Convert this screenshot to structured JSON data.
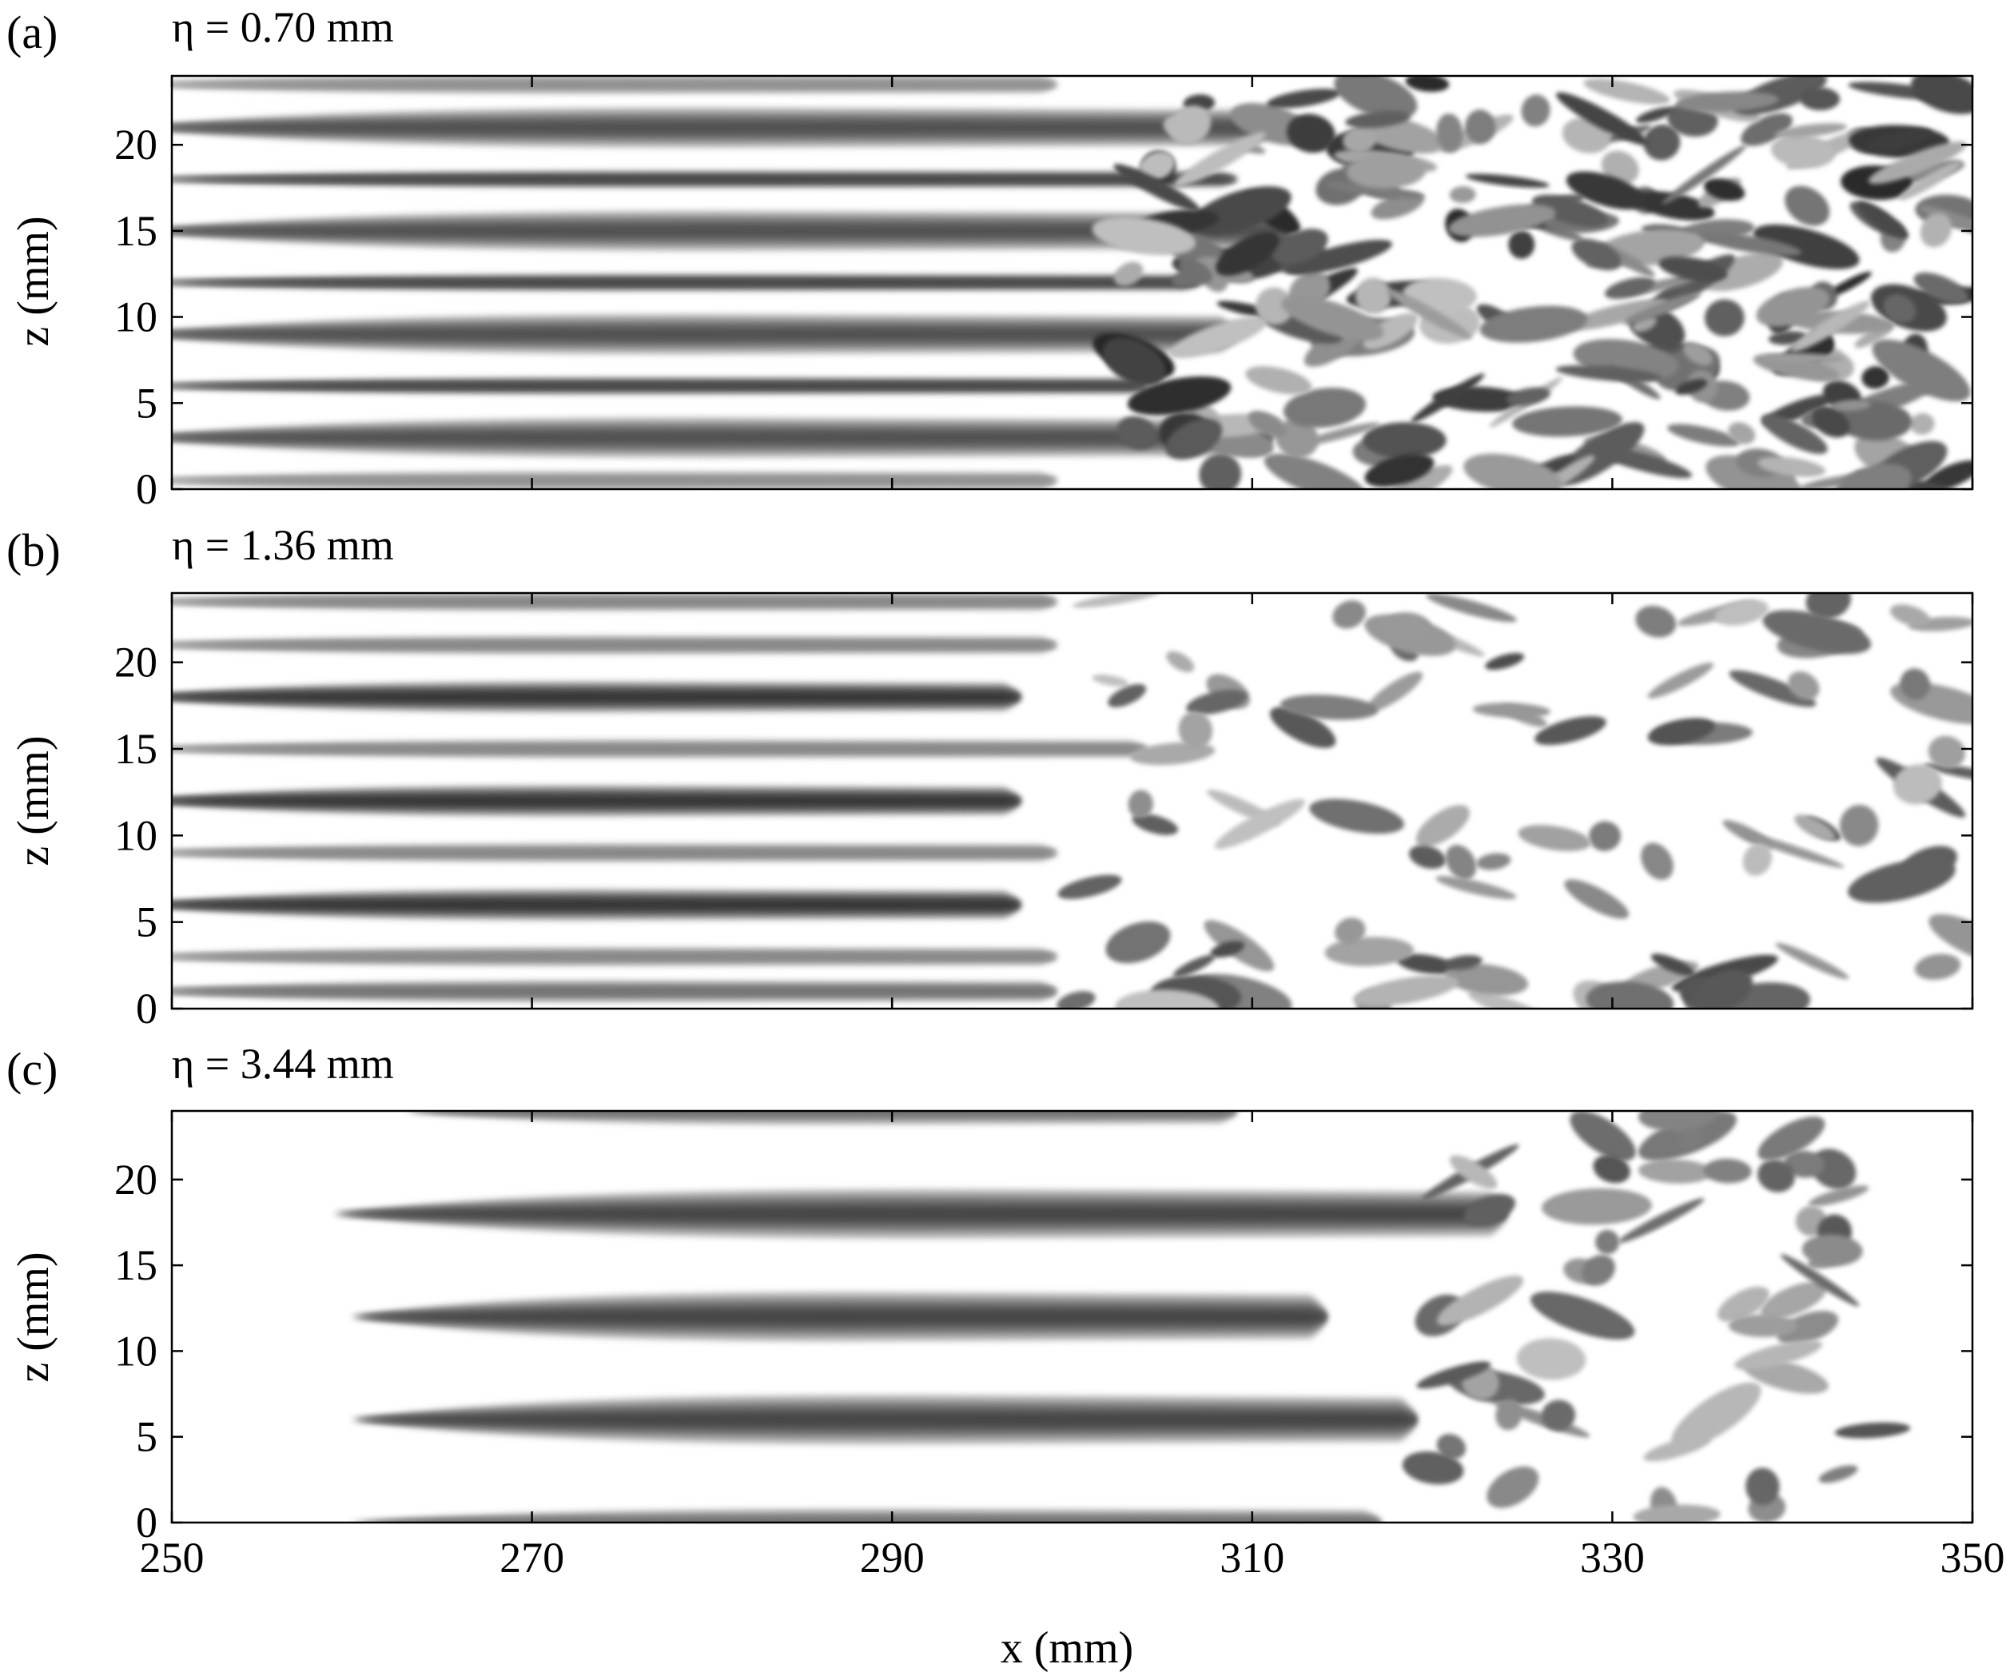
{
  "chart_data": [
    {
      "type": "heatmap",
      "panel": "(a)",
      "title": "η = 0.70 mm",
      "xlabel": "",
      "ylabel": "z (mm)",
      "xlim": [
        250,
        350
      ],
      "ylim": [
        0,
        24
      ],
      "xticks": [
        250,
        270,
        290,
        310,
        330,
        350
      ],
      "yticks": [
        0,
        5,
        10,
        15,
        20
      ],
      "colormap": "grayscale",
      "streaks": [
        {
          "z": 0.5,
          "intensity": 0.55,
          "width": 0.6,
          "end_x": 300
        },
        {
          "z": 3.0,
          "intensity": 0.85,
          "width": 1.3,
          "end_x": 312
        },
        {
          "z": 6.0,
          "intensity": 0.95,
          "width": 0.55,
          "end_x": 305
        },
        {
          "z": 9.0,
          "intensity": 0.85,
          "width": 1.3,
          "end_x": 310
        },
        {
          "z": 12.0,
          "intensity": 0.95,
          "width": 0.55,
          "end_x": 308
        },
        {
          "z": 15.0,
          "intensity": 0.85,
          "width": 1.3,
          "end_x": 313
        },
        {
          "z": 18.0,
          "intensity": 0.95,
          "width": 0.55,
          "end_x": 310
        },
        {
          "z": 21.0,
          "intensity": 0.85,
          "width": 1.3,
          "end_x": 312
        },
        {
          "z": 23.5,
          "intensity": 0.55,
          "width": 0.6,
          "end_x": 300
        }
      ],
      "turbulence": {
        "start_x": 303,
        "end_x": 350,
        "density": 0.8
      }
    },
    {
      "type": "heatmap",
      "panel": "(b)",
      "title": "η = 1.36 mm",
      "xlabel": "",
      "ylabel": "z (mm)",
      "xlim": [
        250,
        350
      ],
      "ylim": [
        0,
        24
      ],
      "xticks": [
        250,
        270,
        290,
        310,
        330,
        350
      ],
      "yticks": [
        0,
        5,
        10,
        15,
        20
      ],
      "colormap": "grayscale",
      "streaks": [
        {
          "z": 1.0,
          "intensity": 0.7,
          "width": 0.7,
          "end_x": 300
        },
        {
          "z": 3.0,
          "intensity": 0.6,
          "width": 0.6,
          "end_x": 300
        },
        {
          "z": 6.0,
          "intensity": 1.0,
          "width": 1.0,
          "end_x": 298
        },
        {
          "z": 9.0,
          "intensity": 0.6,
          "width": 0.6,
          "end_x": 300
        },
        {
          "z": 12.0,
          "intensity": 1.0,
          "width": 1.0,
          "end_x": 298
        },
        {
          "z": 15.0,
          "intensity": 0.6,
          "width": 0.6,
          "end_x": 305
        },
        {
          "z": 18.0,
          "intensity": 1.0,
          "width": 1.0,
          "end_x": 298
        },
        {
          "z": 21.0,
          "intensity": 0.6,
          "width": 0.6,
          "end_x": 300
        },
        {
          "z": 23.5,
          "intensity": 0.6,
          "width": 0.6,
          "end_x": 300
        }
      ],
      "turbulence": {
        "start_x": 300,
        "end_x": 350,
        "density": 0.35
      }
    },
    {
      "type": "heatmap",
      "panel": "(c)",
      "title": "η = 3.44 mm",
      "xlabel": "x (mm)",
      "ylabel": "z (mm)",
      "xlim": [
        250,
        350
      ],
      "ylim": [
        0,
        24
      ],
      "xticks": [
        250,
        270,
        290,
        310,
        330,
        350
      ],
      "yticks": [
        0,
        5,
        10,
        15,
        20
      ],
      "colormap": "grayscale",
      "streaks": [
        {
          "z": 0.0,
          "intensity": 0.7,
          "width": 0.9,
          "start_x": 262,
          "end_x": 318
        },
        {
          "z": 6.0,
          "intensity": 0.9,
          "width": 1.6,
          "start_x": 262,
          "end_x": 320
        },
        {
          "z": 12.0,
          "intensity": 0.9,
          "width": 1.6,
          "start_x": 262,
          "end_x": 315
        },
        {
          "z": 18.0,
          "intensity": 0.9,
          "width": 1.6,
          "start_x": 261,
          "end_x": 325
        },
        {
          "z": 24.0,
          "intensity": 0.7,
          "width": 0.9,
          "start_x": 265,
          "end_x": 310
        }
      ],
      "turbulence": {
        "start_x": 320,
        "end_x": 345,
        "density": 0.2
      }
    }
  ]
}
